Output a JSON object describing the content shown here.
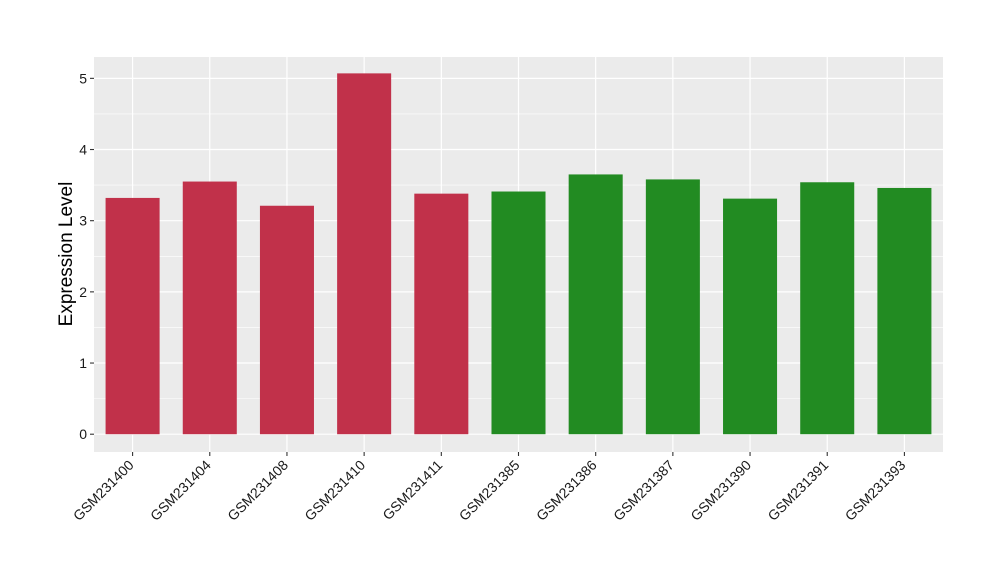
{
  "chart_data": {
    "type": "bar",
    "title": "",
    "xlabel": "",
    "ylabel": "Expression Level",
    "ylim": [
      -0.25,
      5.3
    ],
    "yticks": [
      0,
      1,
      2,
      3,
      4,
      5
    ],
    "grid": true,
    "legend": "none",
    "categories": [
      "GSM231400",
      "GSM231404",
      "GSM231408",
      "GSM231410",
      "GSM231411",
      "GSM231385",
      "GSM231386",
      "GSM231387",
      "GSM231390",
      "GSM231391",
      "GSM231393"
    ],
    "values": [
      3.32,
      3.55,
      3.21,
      5.07,
      3.38,
      3.41,
      3.65,
      3.58,
      3.31,
      3.54,
      3.46
    ],
    "bar_colors": [
      "#C1314A",
      "#C1314A",
      "#C1314A",
      "#C1314A",
      "#C1314A",
      "#228B22",
      "#228B22",
      "#228B22",
      "#228B22",
      "#228B22",
      "#228B22"
    ]
  },
  "colors": {
    "panel_background": "#EBEBEB",
    "grid_line": "#FFFFFF",
    "tick_mark": "#333333"
  }
}
